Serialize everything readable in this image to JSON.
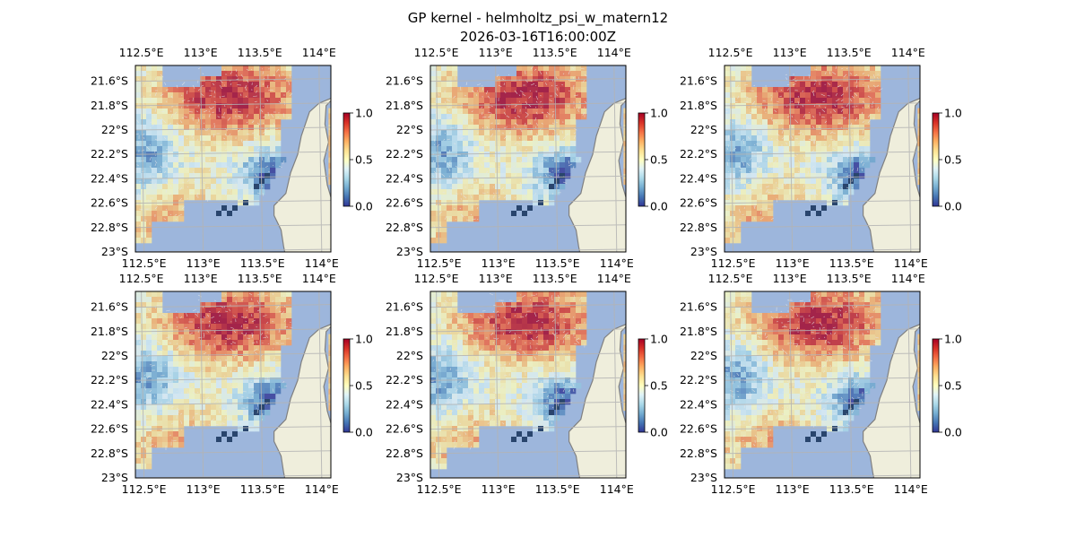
{
  "figure": {
    "title_line1": "GP kernel - helmholtz_psi_w_matern12",
    "title_line2": "2026-03-16T16:00:00Z"
  },
  "axes": {
    "lon_ticks": [
      "112.5°E",
      "113°E",
      "113.5°E",
      "114°E"
    ],
    "lon_values": [
      112.5,
      113.0,
      113.5,
      114.0
    ],
    "lat_ticks": [
      "21.6°S",
      "21.8°S",
      "22°S",
      "22.2°S",
      "22.4°S",
      "22.6°S",
      "22.8°S",
      "23°S"
    ],
    "lat_values": [
      -21.6,
      -21.8,
      -22.0,
      -22.2,
      -22.4,
      -22.6,
      -22.8,
      -23.0
    ],
    "lon_range": [
      112.45,
      114.1
    ],
    "lat_range": [
      -23.0,
      -21.47
    ]
  },
  "colorbar": {
    "ticks": [
      "0.0",
      "0.5",
      "1.0"
    ],
    "values": [
      0.0,
      0.5,
      1.0
    ],
    "range": [
      0.0,
      1.0
    ],
    "colormap": "RdYlBu_r"
  },
  "colors": {
    "ocean": "#9db6dc",
    "land": "#efeedc",
    "coast": "#808080",
    "grid": "#b4b4b4"
  },
  "panels": [
    {
      "id": 1,
      "seed": 11
    },
    {
      "id": 2,
      "seed": 23
    },
    {
      "id": 3,
      "seed": 37
    },
    {
      "id": 4,
      "seed": 51
    },
    {
      "id": 5,
      "seed": 67
    },
    {
      "id": 6,
      "seed": 83
    }
  ]
}
